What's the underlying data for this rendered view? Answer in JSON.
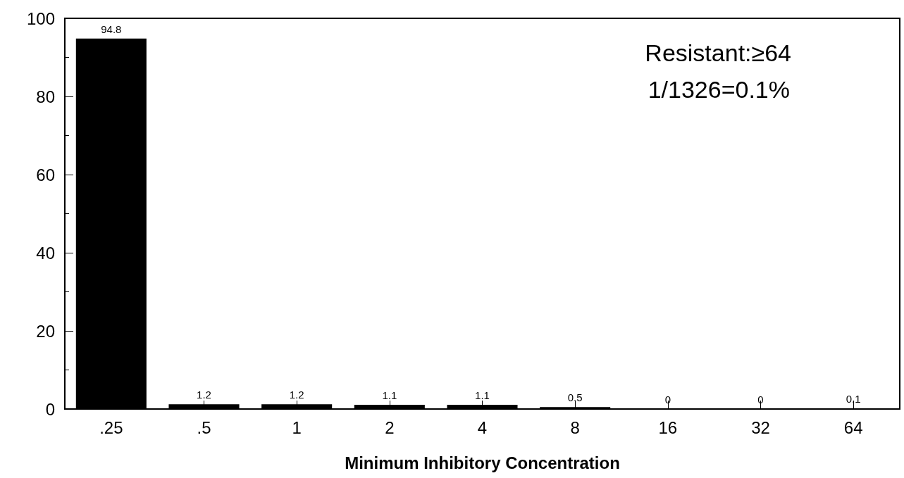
{
  "chart_data": {
    "type": "bar",
    "xlabel": "Minimum Inhibitory Concentration",
    "categories": [
      ".25",
      ".5",
      "1",
      "2",
      "4",
      "8",
      "16",
      "32",
      "64"
    ],
    "values": [
      94.8,
      1.2,
      1.2,
      1.1,
      1.1,
      0.5,
      0,
      0,
      0.1
    ],
    "color": "#000000",
    "ylim": [
      0,
      100
    ],
    "yticks": [
      0,
      20,
      40,
      60,
      80,
      100
    ],
    "grid": false,
    "data_labels": true,
    "annotations": [
      "Resistant:≥64",
      "1/1326=0.1%"
    ]
  }
}
